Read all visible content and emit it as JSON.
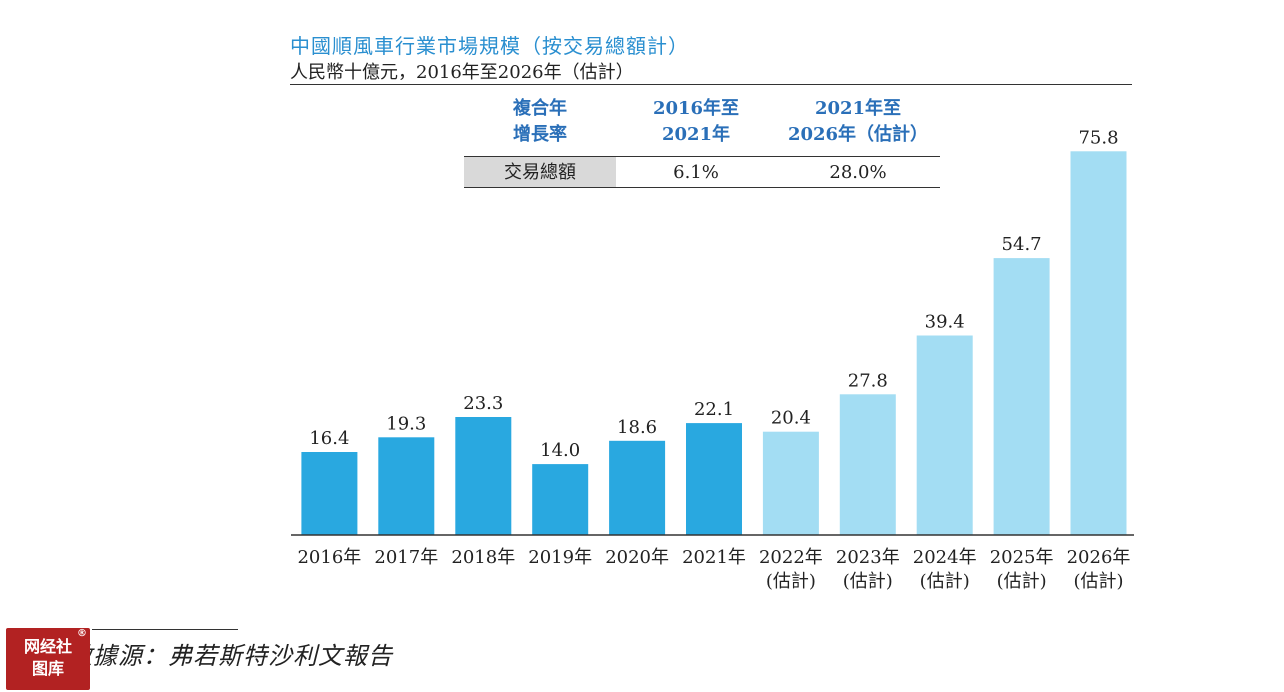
{
  "chart_data": {
    "type": "bar",
    "title": "中國順風車行業市場規模（按交易總額計）",
    "subtitle": "人民幣十億元，2016年至2026年（估計）",
    "categories": [
      [
        "2016年"
      ],
      [
        "2017年"
      ],
      [
        "2018年"
      ],
      [
        "2019年"
      ],
      [
        "2020年"
      ],
      [
        "2021年"
      ],
      [
        "2022年",
        "(估計)"
      ],
      [
        "2023年",
        "(估計)"
      ],
      [
        "2024年",
        "(估計)"
      ],
      [
        "2025年",
        "(估計)"
      ],
      [
        "2026年",
        "(估計)"
      ]
    ],
    "values": [
      16.4,
      19.3,
      23.3,
      14.0,
      18.6,
      22.1,
      20.4,
      27.8,
      39.4,
      54.7,
      75.8
    ],
    "value_labels": [
      "16.4",
      "19.3",
      "23.3",
      "14.0",
      "18.6",
      "22.1",
      "20.4",
      "27.8",
      "39.4",
      "54.7",
      "75.8"
    ],
    "colors": {
      "actual": "#29a8e0",
      "estimate": "#a3ddf3"
    },
    "estimate_from_index": 6,
    "ylim": [
      0,
      80
    ],
    "grid": false
  },
  "cagr_table": {
    "header_label": [
      "複合年",
      "增長率"
    ],
    "col1_header": [
      "2016年至",
      "2021年"
    ],
    "col2_header": [
      "2021年至",
      "2026年（估計）"
    ],
    "row_label": "交易總額",
    "col1_value": "6.1%",
    "col2_value": "28.0%"
  },
  "source": "數據源：弗若斯特沙利文報告",
  "watermark": {
    "line1": "网经社",
    "line2": "图库",
    "mark": "®"
  }
}
